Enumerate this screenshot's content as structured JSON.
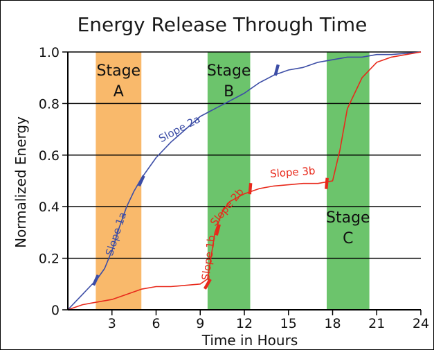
{
  "chart_data": {
    "type": "line",
    "title": "Energy Release Through Time",
    "xlabel": "Time in Hours",
    "ylabel": "Normalized Energy",
    "xlim": [
      0,
      24
    ],
    "ylim": [
      0,
      1.0
    ],
    "x_ticks": [
      3,
      6,
      9,
      12,
      15,
      18,
      21,
      24
    ],
    "x_tick_labels": [
      "3",
      "6",
      "9",
      "12",
      "15",
      "18",
      "21",
      "24"
    ],
    "y_ticks": [
      0,
      0.2,
      0.4,
      0.6,
      0.8,
      1.0
    ],
    "y_tick_labels": [
      "0",
      "0.2",
      "0.4",
      "0.6",
      "0.8",
      "1.0"
    ],
    "grid": "horizontal",
    "stages": [
      {
        "label": [
          "Stage",
          "A"
        ],
        "x0": 1.9,
        "x1": 5.0,
        "color": "#f9b96b",
        "label_pos": "top"
      },
      {
        "label": [
          "Stage",
          "B"
        ],
        "x0": 9.5,
        "x1": 12.4,
        "color": "#6cc46c",
        "label_pos": "top"
      },
      {
        "label": [
          "Stage",
          "C"
        ],
        "x0": 17.6,
        "x1": 20.5,
        "color": "#6cc46c",
        "label_pos": "middle"
      }
    ],
    "series": [
      {
        "color": "#3c4da6",
        "x": [
          0,
          0.5,
          1,
          1.5,
          2,
          2.5,
          3,
          3.5,
          4,
          4.5,
          5,
          5.5,
          6,
          7,
          8,
          9,
          10,
          11,
          12,
          13,
          14,
          15,
          16,
          17,
          18,
          19,
          20,
          21,
          22,
          23,
          24
        ],
        "y": [
          0,
          0.03,
          0.06,
          0.09,
          0.12,
          0.16,
          0.23,
          0.32,
          0.4,
          0.46,
          0.51,
          0.55,
          0.59,
          0.65,
          0.7,
          0.75,
          0.78,
          0.81,
          0.84,
          0.88,
          0.91,
          0.93,
          0.94,
          0.96,
          0.97,
          0.98,
          0.98,
          0.99,
          0.99,
          0.995,
          1.0
        ]
      },
      {
        "color": "#e8291b",
        "x": [
          0,
          1,
          2,
          3,
          4,
          5,
          6,
          7,
          8,
          9,
          9.5,
          10,
          10.5,
          11,
          12,
          13,
          14,
          15,
          16,
          17,
          18,
          18.5,
          19,
          20,
          21,
          22,
          23,
          24
        ],
        "y": [
          0,
          0.02,
          0.03,
          0.04,
          0.06,
          0.08,
          0.09,
          0.09,
          0.095,
          0.1,
          0.12,
          0.3,
          0.38,
          0.42,
          0.45,
          0.47,
          0.48,
          0.485,
          0.49,
          0.49,
          0.5,
          0.62,
          0.78,
          0.9,
          0.96,
          0.98,
          0.99,
          1.0
        ]
      }
    ],
    "annotations": [
      {
        "text": "Slope 1a",
        "x": 3.5,
        "y": 0.29,
        "angle": -72,
        "color": "#3c4da6"
      },
      {
        "text": "Slope 2a",
        "x": 7.7,
        "y": 0.69,
        "angle": -28,
        "color": "#3c4da6"
      },
      {
        "text": "Slope 1b",
        "x": 9.8,
        "y": 0.2,
        "angle": -82,
        "color": "#e8291b"
      },
      {
        "text": "Slope 2b",
        "x": 11.0,
        "y": 0.39,
        "angle": -50,
        "color": "#e8291b"
      },
      {
        "text": "Slope 3b",
        "x": 15.3,
        "y": 0.52,
        "angle": -4,
        "color": "#e8291b"
      }
    ],
    "markers": [
      {
        "x": 1.9,
        "y": 0.115,
        "color": "#3c4da6",
        "angle": -65
      },
      {
        "x": 5.0,
        "y": 0.5,
        "color": "#3c4da6",
        "angle": -65
      },
      {
        "x": 14.2,
        "y": 0.93,
        "color": "#3c4da6",
        "angle": -75
      },
      {
        "x": 9.5,
        "y": 0.1,
        "color": "#e8291b",
        "angle": -60
      },
      {
        "x": 10.2,
        "y": 0.31,
        "color": "#e8291b",
        "angle": -75
      },
      {
        "x": 12.4,
        "y": 0.47,
        "color": "#e8291b",
        "angle": -85
      },
      {
        "x": 17.6,
        "y": 0.49,
        "color": "#e8291b",
        "angle": -85
      }
    ]
  }
}
